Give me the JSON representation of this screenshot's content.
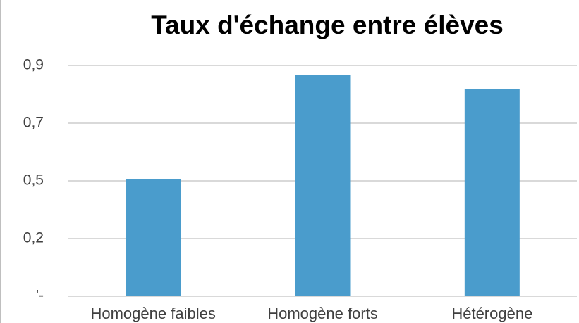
{
  "chart_data": {
    "type": "bar",
    "title": "Taux d'échange entre élèves",
    "categories": [
      "Homogène faibles",
      "Homogène forts",
      "Hétérogène"
    ],
    "values": [
      0.458,
      0.862,
      0.809
    ],
    "color": "#4a9ccc",
    "ylim": [
      0,
      0.9
    ],
    "yticks": [
      {
        "value": 0,
        "label": "'-"
      },
      {
        "value": 0.225,
        "label": "0,2"
      },
      {
        "value": 0.45,
        "label": "0,5"
      },
      {
        "value": 0.675,
        "label": "0,7"
      },
      {
        "value": 0.9,
        "label": "0,9"
      }
    ],
    "grid": true
  }
}
